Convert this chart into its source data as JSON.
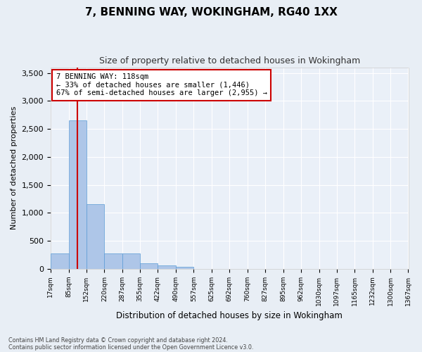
{
  "title": "7, BENNING WAY, WOKINGHAM, RG40 1XX",
  "subtitle": "Size of property relative to detached houses in Wokingham",
  "xlabel": "Distribution of detached houses by size in Wokingham",
  "ylabel": "Number of detached properties",
  "footnote1": "Contains HM Land Registry data © Crown copyright and database right 2024.",
  "footnote2": "Contains public sector information licensed under the Open Government Licence v3.0.",
  "bin_labels": [
    "17sqm",
    "85sqm",
    "152sqm",
    "220sqm",
    "287sqm",
    "355sqm",
    "422sqm",
    "490sqm",
    "557sqm",
    "625sqm",
    "692sqm",
    "760sqm",
    "827sqm",
    "895sqm",
    "962sqm",
    "1030sqm",
    "1097sqm",
    "1165sqm",
    "1232sqm",
    "1300sqm",
    "1367sqm"
  ],
  "bar_values": [
    280,
    2650,
    1150,
    280,
    280,
    95,
    55,
    40,
    0,
    0,
    0,
    0,
    0,
    0,
    0,
    0,
    0,
    0,
    0,
    0
  ],
  "bar_color": "#aec6e8",
  "bar_edge_color": "#5a9bd5",
  "property_size": 118,
  "property_label": "7 BENNING WAY: 118sqm",
  "annotation_line1": "← 33% of detached houses are smaller (1,446)",
  "annotation_line2": "67% of semi-detached houses are larger (2,955) →",
  "vline_color": "#cc0000",
  "annotation_box_edge": "#cc0000",
  "ylim": [
    0,
    3600
  ],
  "yticks": [
    0,
    500,
    1000,
    1500,
    2000,
    2500,
    3000,
    3500
  ],
  "bin_edges": [
    17,
    85,
    152,
    220,
    287,
    355,
    422,
    490,
    557,
    625,
    692,
    760,
    827,
    895,
    962,
    1030,
    1097,
    1165,
    1232,
    1300,
    1367
  ],
  "background_color": "#e8eef5",
  "plot_background": "#eaf0f8",
  "title_fontsize": 11,
  "subtitle_fontsize": 9,
  "grid_color": "#ffffff",
  "vline_x": 118
}
